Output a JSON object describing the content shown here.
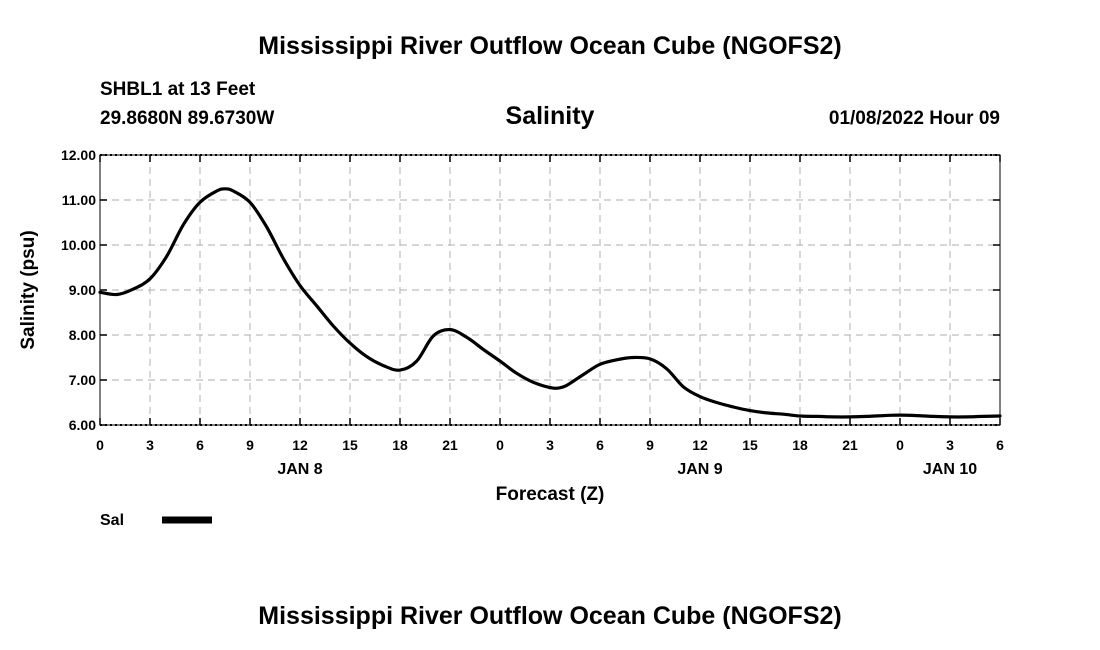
{
  "header": {
    "title": "Mississippi River Outflow Ocean Cube (NGOFS2)",
    "station": "SHBL1 at 13 Feet",
    "coords": "29.8680N  89.6730W",
    "date": "01/08/2022 Hour 09",
    "footer_title": "Mississippi River Outflow Ocean Cube (NGOFS2)"
  },
  "legend": {
    "label": "Sal"
  },
  "chart_data": {
    "type": "line",
    "title": "Salinity",
    "xlabel": "Forecast (Z)",
    "ylabel": "Salinity (psu)",
    "xlim": [
      0,
      54
    ],
    "ylim": [
      6,
      12
    ],
    "grid": true,
    "x_ticks": [
      0,
      3,
      6,
      9,
      12,
      15,
      18,
      21,
      24,
      27,
      30,
      33,
      36,
      39,
      42,
      45,
      48,
      51,
      54
    ],
    "x_tick_labels": [
      "0",
      "3",
      "6",
      "9",
      "12",
      "15",
      "18",
      "21",
      "0",
      "3",
      "6",
      "9",
      "12",
      "15",
      "18",
      "21",
      "0",
      "3",
      "6"
    ],
    "date_labels": [
      {
        "text": "JAN 8",
        "x": 12
      },
      {
        "text": "JAN 9",
        "x": 36
      },
      {
        "text": "JAN 10",
        "x": 51
      }
    ],
    "y_ticks": [
      6,
      7,
      8,
      9,
      10,
      11,
      12
    ],
    "y_tick_labels": [
      "6.00",
      "7.00",
      "8.00",
      "9.00",
      "10.00",
      "11.00",
      "12.00"
    ],
    "series": [
      {
        "name": "Sal",
        "x": [
          0,
          1,
          2,
          3,
          4,
          5,
          6,
          7,
          7.5,
          8,
          9,
          10,
          11,
          12,
          13,
          14,
          15,
          16,
          17,
          18,
          19,
          20,
          21,
          22,
          23,
          24,
          25,
          26,
          27,
          27.5,
          28,
          29,
          30,
          31,
          32,
          33,
          34,
          35,
          36,
          37,
          38,
          39,
          40,
          41,
          42,
          43,
          44,
          45,
          46,
          47,
          48,
          49,
          50,
          51,
          52,
          53,
          54
        ],
        "values": [
          8.95,
          8.9,
          9.02,
          9.25,
          9.75,
          10.45,
          10.95,
          11.2,
          11.25,
          11.2,
          10.95,
          10.4,
          9.7,
          9.1,
          8.65,
          8.2,
          7.82,
          7.52,
          7.32,
          7.22,
          7.42,
          7.98,
          8.12,
          7.95,
          7.68,
          7.42,
          7.15,
          6.95,
          6.83,
          6.82,
          6.88,
          7.12,
          7.35,
          7.45,
          7.5,
          7.47,
          7.25,
          6.85,
          6.63,
          6.5,
          6.4,
          6.32,
          6.27,
          6.24,
          6.2,
          6.19,
          6.18,
          6.18,
          6.19,
          6.21,
          6.22,
          6.21,
          6.19,
          6.18,
          6.18,
          6.19,
          6.2
        ]
      }
    ]
  }
}
